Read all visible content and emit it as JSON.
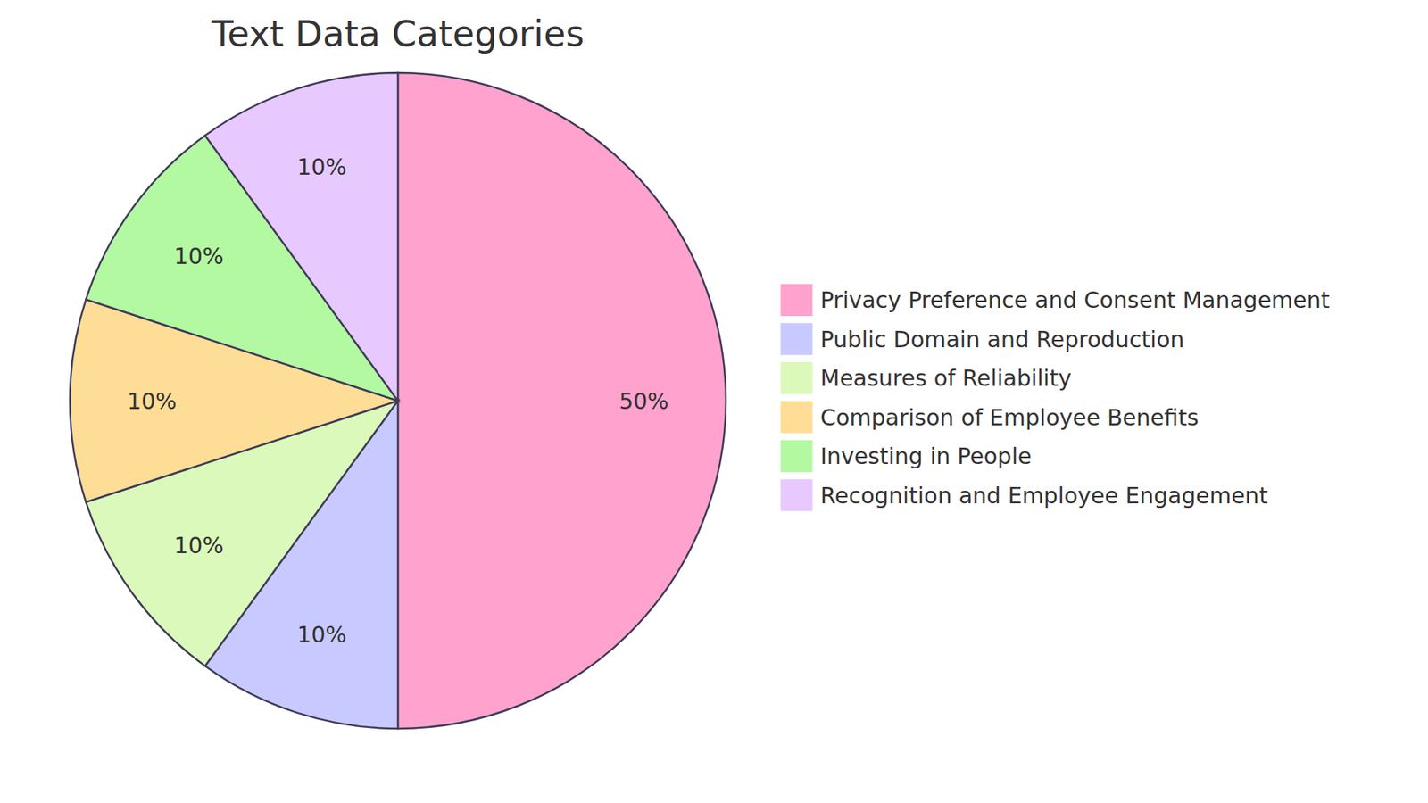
{
  "chart_data": {
    "type": "pie",
    "title": "Text Data Categories",
    "categories": [
      "Privacy Preference and Consent Management",
      "Public Domain and Reproduction",
      "Measures of Reliability",
      "Comparison of Employee Benefits",
      "Investing in People",
      "Recognition and Employee Engagement"
    ],
    "values": [
      50,
      10,
      10,
      10,
      10,
      10
    ],
    "value_labels": [
      "50%",
      "10%",
      "10%",
      "10%",
      "10%",
      "10%"
    ],
    "colors": [
      "#ffa3ce",
      "#c8caff",
      "#dbf9ba",
      "#fedd96",
      "#b3f9a2",
      "#e7c9ff"
    ],
    "data_labels": true,
    "legend": "right"
  }
}
